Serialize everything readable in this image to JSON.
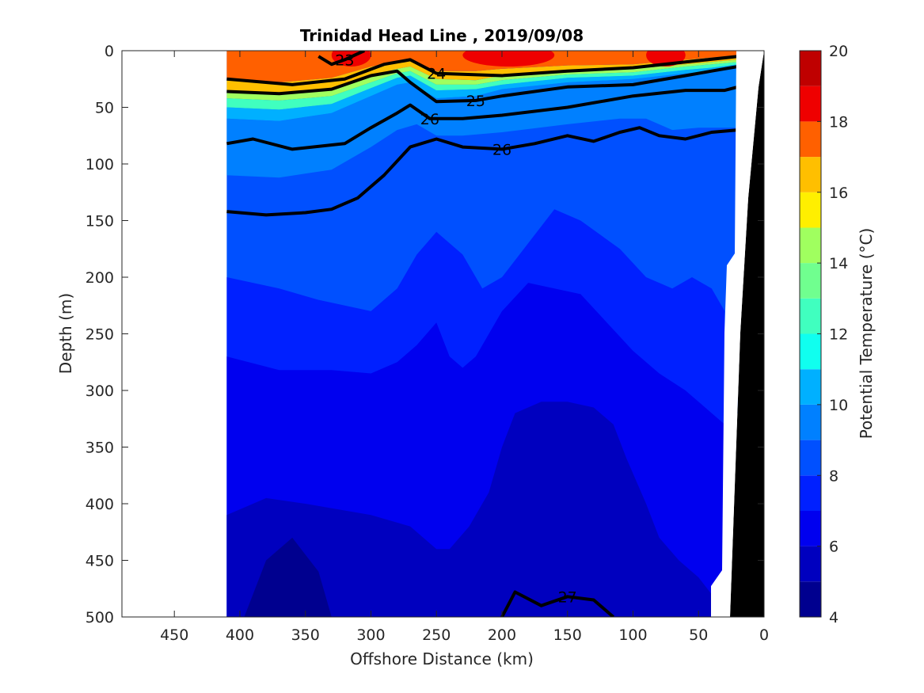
{
  "chart_data": {
    "type": "heatmap",
    "title": "Trinidad Head Line , 2019/09/08",
    "xlabel": "Offshore Distance (km)",
    "ylabel": "Depth (m)",
    "colorbar_label": "Potential Temperature (°C)",
    "xlim": [
      490,
      0
    ],
    "ylim": [
      0,
      500
    ],
    "x_direction": "reversed",
    "y_direction": "reversed",
    "xticks": [
      450,
      400,
      350,
      300,
      250,
      200,
      150,
      100,
      50,
      0
    ],
    "yticks": [
      0,
      50,
      100,
      150,
      200,
      250,
      300,
      350,
      400,
      450,
      500
    ],
    "color_range": [
      4,
      20
    ],
    "color_ticks": [
      4,
      6,
      8,
      10,
      12,
      14,
      16,
      18,
      20
    ],
    "color_levels": [
      {
        "min": 4,
        "max": 5,
        "color": "#00008f"
      },
      {
        "min": 5,
        "max": 6,
        "color": "#0000bf"
      },
      {
        "min": 6,
        "max": 7,
        "color": "#0000ef"
      },
      {
        "min": 7,
        "max": 8,
        "color": "#0020ff"
      },
      {
        "min": 8,
        "max": 9,
        "color": "#0050ff"
      },
      {
        "min": 9,
        "max": 10,
        "color": "#0080ff"
      },
      {
        "min": 10,
        "max": 11,
        "color": "#00b0ff"
      },
      {
        "min": 11,
        "max": 12,
        "color": "#10ffef"
      },
      {
        "min": 12,
        "max": 13,
        "color": "#40ffbf"
      },
      {
        "min": 13,
        "max": 14,
        "color": "#70ff8f"
      },
      {
        "min": 14,
        "max": 15,
        "color": "#a0ff5f"
      },
      {
        "min": 15,
        "max": 16,
        "color": "#ffef00"
      },
      {
        "min": 16,
        "max": 17,
        "color": "#ffbf00"
      },
      {
        "min": 17,
        "max": 18,
        "color": "#ff6000"
      },
      {
        "min": 18,
        "max": 19,
        "color": "#ef0000"
      },
      {
        "min": 19,
        "max": 20,
        "color": "#bf0000"
      },
      {
        "min": 20,
        "max": 21,
        "color": "#9f0000"
      }
    ],
    "data_extent_km": [
      410,
      20
    ],
    "temperature_bands": [
      {
        "temp": 8,
        "depth": [
          [
            410,
            0
          ],
          [
            320,
            0
          ],
          [
            280,
            0
          ],
          [
            240,
            0
          ],
          [
            200,
            0
          ],
          [
            150,
            0
          ],
          [
            100,
            0
          ],
          [
            50,
            0
          ],
          [
            20,
            0
          ],
          [
            20,
            320
          ],
          [
            30,
            330
          ],
          [
            30,
            540
          ],
          [
            410,
            540
          ]
        ]
      },
      {
        "temp": 7,
        "depth": [
          [
            410,
            200
          ],
          [
            370,
            210
          ],
          [
            340,
            220
          ],
          [
            300,
            230
          ],
          [
            280,
            210
          ],
          [
            265,
            180
          ],
          [
            250,
            160
          ],
          [
            230,
            180
          ],
          [
            215,
            210
          ],
          [
            200,
            200
          ],
          [
            180,
            170
          ],
          [
            160,
            140
          ],
          [
            140,
            150
          ],
          [
            110,
            175
          ],
          [
            90,
            200
          ],
          [
            70,
            210
          ],
          [
            55,
            200
          ],
          [
            40,
            210
          ],
          [
            30,
            230
          ],
          [
            30,
            540
          ],
          [
            410,
            540
          ]
        ]
      },
      {
        "temp": 6,
        "depth": [
          [
            410,
            270
          ],
          [
            370,
            282
          ],
          [
            330,
            282
          ],
          [
            300,
            285
          ],
          [
            280,
            275
          ],
          [
            265,
            260
          ],
          [
            250,
            240
          ],
          [
            240,
            270
          ],
          [
            230,
            280
          ],
          [
            220,
            270
          ],
          [
            200,
            230
          ],
          [
            180,
            205
          ],
          [
            160,
            210
          ],
          [
            140,
            215
          ],
          [
            120,
            240
          ],
          [
            100,
            265
          ],
          [
            80,
            285
          ],
          [
            60,
            300
          ],
          [
            40,
            320
          ],
          [
            30,
            330
          ],
          [
            30,
            540
          ],
          [
            410,
            540
          ]
        ]
      },
      {
        "temp": 5,
        "depth": [
          [
            410,
            410
          ],
          [
            380,
            395
          ],
          [
            350,
            400
          ],
          [
            300,
            410
          ],
          [
            270,
            420
          ],
          [
            250,
            440
          ],
          [
            240,
            440
          ],
          [
            225,
            420
          ],
          [
            210,
            390
          ],
          [
            200,
            350
          ],
          [
            190,
            320
          ],
          [
            170,
            310
          ],
          [
            150,
            310
          ],
          [
            130,
            315
          ],
          [
            115,
            330
          ],
          [
            105,
            360
          ],
          [
            90,
            400
          ],
          [
            80,
            430
          ],
          [
            65,
            450
          ],
          [
            50,
            465
          ],
          [
            40,
            480
          ],
          [
            35,
            540
          ],
          [
            410,
            540
          ]
        ]
      },
      {
        "temp": 4,
        "depth": [
          [
            410,
            540
          ],
          [
            380,
            450
          ],
          [
            360,
            430
          ],
          [
            340,
            460
          ],
          [
            330,
            500
          ],
          [
            330,
            540
          ]
        ]
      }
    ],
    "contours": [
      {
        "label": "23",
        "depth": [
          [
            340,
            5
          ],
          [
            330,
            12
          ],
          [
            320,
            8
          ],
          [
            305,
            0
          ]
        ]
      },
      {
        "label": "24",
        "depth": [
          [
            410,
            25
          ],
          [
            360,
            30
          ],
          [
            320,
            25
          ],
          [
            290,
            12
          ],
          [
            270,
            8
          ],
          [
            250,
            20
          ],
          [
            200,
            22
          ],
          [
            150,
            18
          ],
          [
            100,
            15
          ],
          [
            60,
            10
          ],
          [
            20,
            5
          ]
        ]
      },
      {
        "label": "25",
        "depth": [
          [
            410,
            36
          ],
          [
            370,
            38
          ],
          [
            330,
            34
          ],
          [
            300,
            22
          ],
          [
            280,
            18
          ],
          [
            270,
            28
          ],
          [
            250,
            45
          ],
          [
            220,
            44
          ],
          [
            200,
            40
          ],
          [
            150,
            32
          ],
          [
            100,
            30
          ],
          [
            60,
            22
          ],
          [
            40,
            18
          ],
          [
            20,
            14
          ]
        ]
      },
      {
        "label": "26",
        "depth": [
          [
            410,
            82
          ],
          [
            390,
            78
          ],
          [
            360,
            87
          ],
          [
            320,
            82
          ],
          [
            300,
            68
          ],
          [
            280,
            55
          ],
          [
            270,
            48
          ],
          [
            255,
            60
          ],
          [
            230,
            60
          ],
          [
            200,
            57
          ],
          [
            150,
            50
          ],
          [
            100,
            40
          ],
          [
            60,
            35
          ],
          [
            30,
            35
          ],
          [
            20,
            32
          ]
        ]
      },
      {
        "label": "26",
        "depth": [
          [
            410,
            142
          ],
          [
            380,
            145
          ],
          [
            350,
            143
          ],
          [
            330,
            140
          ],
          [
            310,
            130
          ],
          [
            290,
            110
          ],
          [
            270,
            85
          ],
          [
            250,
            78
          ],
          [
            230,
            85
          ],
          [
            200,
            87
          ],
          [
            175,
            82
          ],
          [
            150,
            75
          ],
          [
            130,
            80
          ],
          [
            110,
            72
          ],
          [
            95,
            68
          ],
          [
            80,
            75
          ],
          [
            60,
            78
          ],
          [
            40,
            72
          ],
          [
            20,
            70
          ]
        ]
      },
      {
        "label": "27",
        "depth": [
          [
            200,
            500
          ],
          [
            190,
            478
          ],
          [
            170,
            490
          ],
          [
            150,
            482
          ],
          [
            130,
            485
          ],
          [
            115,
            500
          ]
        ]
      }
    ]
  }
}
